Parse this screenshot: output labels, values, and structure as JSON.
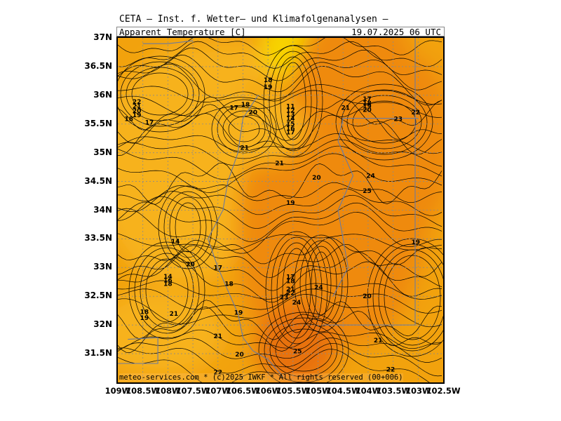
{
  "header": {
    "title": "CETA — Inst. f. Wetter— und Klimafolgenanalysen —",
    "field": "Apparent Temperature [C]",
    "datetime": "19.07.2025 06 UTC"
  },
  "credit": "meteo-services.com * (c)2025 IWKF * All rights reserved (00+006)",
  "axes": {
    "lat_labels": [
      "37N",
      "36.5N",
      "36N",
      "35.5N",
      "35N",
      "34.5N",
      "34N",
      "33.5N",
      "33N",
      "32.5N",
      "32N",
      "31.5N"
    ],
    "lon_labels": [
      "109W",
      "108.5W",
      "108W",
      "107.5W",
      "107W",
      "106.5W",
      "106W",
      "105.5W",
      "105W",
      "104.5W",
      "104W",
      "103.5W",
      "103W",
      "102.5W"
    ]
  },
  "colors": {
    "fill_low": "#f2a20a",
    "fill_mid": "#f7b21a",
    "fill_high": "#ef8a10",
    "fill_peak": "#e8720c",
    "fill_cool": "#f8d400",
    "contour": "#000000",
    "border": "#6a7aa0"
  },
  "contour_labels": [
    {
      "t": "22",
      "lon": -108.62,
      "lat": 35.88
    },
    {
      "t": "21",
      "lon": -108.62,
      "lat": 35.8
    },
    {
      "t": "20",
      "lon": -108.62,
      "lat": 35.72
    },
    {
      "t": "19",
      "lon": -108.62,
      "lat": 35.65
    },
    {
      "t": "18",
      "lon": -108.78,
      "lat": 35.58
    },
    {
      "t": "17",
      "lon": -108.37,
      "lat": 35.52
    },
    {
      "t": "18",
      "lon": -106.0,
      "lat": 36.26
    },
    {
      "t": "19",
      "lon": -106.0,
      "lat": 36.14
    },
    {
      "t": "18",
      "lon": -106.45,
      "lat": 35.83
    },
    {
      "t": "17",
      "lon": -106.68,
      "lat": 35.78
    },
    {
      "t": "20",
      "lon": -106.3,
      "lat": 35.7
    },
    {
      "t": "11",
      "lon": -105.55,
      "lat": 35.8
    },
    {
      "t": "12",
      "lon": -105.55,
      "lat": 35.73
    },
    {
      "t": "13",
      "lon": -105.55,
      "lat": 35.66
    },
    {
      "t": "14",
      "lon": -105.55,
      "lat": 35.59
    },
    {
      "t": "15",
      "lon": -105.55,
      "lat": 35.5
    },
    {
      "t": "16",
      "lon": -105.55,
      "lat": 35.42
    },
    {
      "t": "17",
      "lon": -105.55,
      "lat": 35.35
    },
    {
      "t": "21",
      "lon": -104.45,
      "lat": 35.78
    },
    {
      "t": "17",
      "lon": -104.02,
      "lat": 35.93
    },
    {
      "t": "18",
      "lon": -104.02,
      "lat": 35.86
    },
    {
      "t": "19",
      "lon": -104.02,
      "lat": 35.8
    },
    {
      "t": "20",
      "lon": -104.02,
      "lat": 35.74
    },
    {
      "t": "22",
      "lon": -103.05,
      "lat": 35.7
    },
    {
      "t": "23",
      "lon": -103.4,
      "lat": 35.58
    },
    {
      "t": "21",
      "lon": -106.47,
      "lat": 35.08
    },
    {
      "t": "21",
      "lon": -105.77,
      "lat": 34.81
    },
    {
      "t": "20",
      "lon": -105.03,
      "lat": 34.56
    },
    {
      "t": "24",
      "lon": -103.95,
      "lat": 34.59
    },
    {
      "t": "25",
      "lon": -104.02,
      "lat": 34.33
    },
    {
      "t": "19",
      "lon": -105.55,
      "lat": 34.12
    },
    {
      "t": "19",
      "lon": -103.05,
      "lat": 33.44
    },
    {
      "t": "14",
      "lon": -107.85,
      "lat": 33.45
    },
    {
      "t": "20",
      "lon": -107.55,
      "lat": 33.05
    },
    {
      "t": "17",
      "lon": -107.0,
      "lat": 32.99
    },
    {
      "t": "14",
      "lon": -108.0,
      "lat": 32.84
    },
    {
      "t": "16",
      "lon": -108.0,
      "lat": 32.77
    },
    {
      "t": "18",
      "lon": -108.0,
      "lat": 32.71
    },
    {
      "t": "18",
      "lon": -106.78,
      "lat": 32.71
    },
    {
      "t": "17",
      "lon": -105.55,
      "lat": 32.83
    },
    {
      "t": "18",
      "lon": -105.55,
      "lat": 32.76
    },
    {
      "t": "21",
      "lon": -105.55,
      "lat": 32.62
    },
    {
      "t": "22",
      "lon": -105.55,
      "lat": 32.55
    },
    {
      "t": "23",
      "lon": -105.68,
      "lat": 32.48
    },
    {
      "t": "24",
      "lon": -104.99,
      "lat": 32.65
    },
    {
      "t": "24",
      "lon": -105.43,
      "lat": 32.39
    },
    {
      "t": "20",
      "lon": -104.02,
      "lat": 32.5
    },
    {
      "t": "18",
      "lon": -108.47,
      "lat": 32.22
    },
    {
      "t": "19",
      "lon": -108.47,
      "lat": 32.12
    },
    {
      "t": "21",
      "lon": -107.88,
      "lat": 32.19
    },
    {
      "t": "19",
      "lon": -106.59,
      "lat": 32.21
    },
    {
      "t": "21",
      "lon": -107.0,
      "lat": 31.8
    },
    {
      "t": "20",
      "lon": -106.57,
      "lat": 31.48
    },
    {
      "t": "25",
      "lon": -105.41,
      "lat": 31.54
    },
    {
      "t": "21",
      "lon": -103.8,
      "lat": 31.73
    },
    {
      "t": "22",
      "lon": -103.55,
      "lat": 31.22
    },
    {
      "t": "22",
      "lon": -107.0,
      "lat": 31.17
    }
  ]
}
